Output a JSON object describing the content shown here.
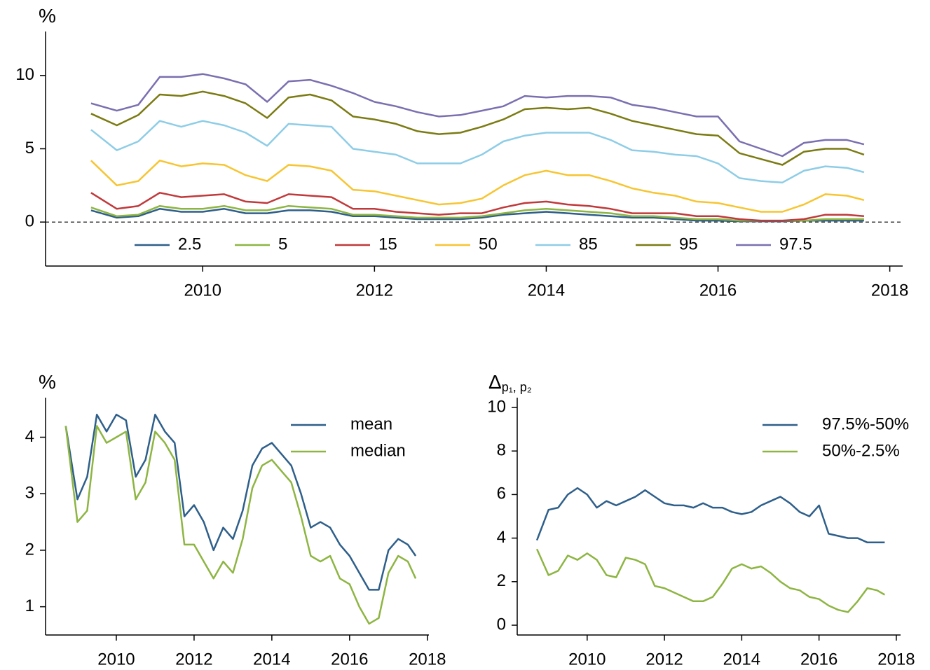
{
  "chart_data": [
    {
      "type": "line",
      "y_label": "%",
      "legend": "lower center",
      "reference_line": 0,
      "xlim": [
        2008.17,
        2018.15
      ],
      "ylim": [
        -3,
        13
      ],
      "xticks": [
        2010,
        2012,
        2014,
        2016,
        2018
      ],
      "yticks": [
        0,
        5,
        10
      ],
      "x": [
        2008.7,
        2009.0,
        2009.25,
        2009.5,
        2009.75,
        2010.0,
        2010.25,
        2010.5,
        2010.75,
        2011.0,
        2011.25,
        2011.5,
        2011.75,
        2012.0,
        2012.25,
        2012.5,
        2012.75,
        2013.0,
        2013.25,
        2013.5,
        2013.75,
        2014.0,
        2014.25,
        2014.5,
        2014.75,
        2015.0,
        2015.25,
        2015.5,
        2015.75,
        2016.0,
        2016.25,
        2016.5,
        2016.75,
        2017.0,
        2017.25,
        2017.5,
        2017.7
      ],
      "series": [
        {
          "name": "2.5",
          "color": "#2e5f8a",
          "values": [
            0.8,
            0.3,
            0.4,
            0.9,
            0.7,
            0.7,
            0.9,
            0.6,
            0.6,
            0.8,
            0.8,
            0.7,
            0.4,
            0.4,
            0.3,
            0.2,
            0.2,
            0.2,
            0.3,
            0.5,
            0.6,
            0.7,
            0.6,
            0.5,
            0.4,
            0.3,
            0.3,
            0.2,
            0.1,
            0.1,
            0.05,
            0.05,
            0.05,
            0.1,
            0.1,
            0.1,
            0.1
          ]
        },
        {
          "name": "5",
          "color": "#8db542",
          "values": [
            1.0,
            0.4,
            0.5,
            1.1,
            0.9,
            0.9,
            1.1,
            0.8,
            0.8,
            1.1,
            1.0,
            0.9,
            0.5,
            0.5,
            0.4,
            0.3,
            0.3,
            0.3,
            0.4,
            0.6,
            0.8,
            0.9,
            0.8,
            0.7,
            0.6,
            0.4,
            0.4,
            0.3,
            0.2,
            0.2,
            0.1,
            0.1,
            0.1,
            0.1,
            0.2,
            0.2,
            0.2
          ]
        },
        {
          "name": "15",
          "color": "#c0393b",
          "values": [
            2.0,
            0.9,
            1.1,
            2.0,
            1.7,
            1.8,
            1.9,
            1.4,
            1.3,
            1.9,
            1.8,
            1.7,
            0.9,
            0.9,
            0.7,
            0.6,
            0.5,
            0.6,
            0.6,
            1.0,
            1.3,
            1.4,
            1.2,
            1.1,
            0.9,
            0.6,
            0.6,
            0.6,
            0.4,
            0.4,
            0.2,
            0.1,
            0.1,
            0.2,
            0.5,
            0.5,
            0.4
          ]
        },
        {
          "name": "50",
          "color": "#f7c531",
          "values": [
            4.2,
            2.5,
            2.8,
            4.2,
            3.8,
            4.0,
            3.9,
            3.2,
            2.8,
            3.9,
            3.8,
            3.5,
            2.2,
            2.1,
            1.8,
            1.5,
            1.2,
            1.3,
            1.6,
            2.5,
            3.2,
            3.5,
            3.2,
            3.2,
            2.8,
            2.3,
            2.0,
            1.8,
            1.4,
            1.3,
            1.0,
            0.7,
            0.7,
            1.2,
            1.9,
            1.8,
            1.5
          ]
        },
        {
          "name": "85",
          "color": "#8ecde6",
          "values": [
            6.3,
            4.9,
            5.5,
            6.9,
            6.5,
            6.9,
            6.6,
            6.1,
            5.2,
            6.7,
            6.6,
            6.5,
            5.0,
            4.8,
            4.6,
            4.0,
            4.0,
            4.0,
            4.6,
            5.5,
            5.9,
            6.1,
            6.1,
            6.1,
            5.6,
            4.9,
            4.8,
            4.6,
            4.5,
            4.0,
            3.0,
            2.8,
            2.7,
            3.5,
            3.8,
            3.7,
            3.4
          ]
        },
        {
          "name": "95",
          "color": "#7b7b13",
          "values": [
            7.4,
            6.6,
            7.3,
            8.7,
            8.6,
            8.9,
            8.6,
            8.1,
            7.1,
            8.5,
            8.7,
            8.3,
            7.2,
            7.0,
            6.7,
            6.2,
            6.0,
            6.1,
            6.5,
            7.0,
            7.7,
            7.8,
            7.7,
            7.8,
            7.4,
            6.9,
            6.6,
            6.3,
            6.0,
            5.9,
            4.7,
            4.3,
            3.9,
            4.8,
            5.0,
            5.0,
            4.6
          ]
        },
        {
          "name": "97.5",
          "color": "#7b6fb0",
          "values": [
            8.1,
            7.6,
            8.0,
            9.9,
            9.9,
            10.1,
            9.8,
            9.4,
            8.2,
            9.6,
            9.7,
            9.3,
            8.8,
            8.2,
            7.9,
            7.5,
            7.2,
            7.3,
            7.6,
            7.9,
            8.6,
            8.5,
            8.6,
            8.6,
            8.5,
            8.0,
            7.8,
            7.5,
            7.2,
            7.2,
            5.5,
            5.0,
            4.5,
            5.4,
            5.6,
            5.6,
            5.3
          ]
        }
      ]
    },
    {
      "type": "line",
      "y_label": "%",
      "legend": "upper right",
      "xlim": [
        2008.18,
        2018.04
      ],
      "ylim": [
        0.5,
        4.7
      ],
      "xticks": [
        2010,
        2012,
        2014,
        2016,
        2018
      ],
      "yticks": [
        1,
        2,
        3,
        4
      ],
      "x": [
        2008.7,
        2009.0,
        2009.25,
        2009.5,
        2009.75,
        2010.0,
        2010.25,
        2010.5,
        2010.75,
        2011.0,
        2011.25,
        2011.5,
        2011.75,
        2012.0,
        2012.25,
        2012.5,
        2012.75,
        2013.0,
        2013.25,
        2013.5,
        2013.75,
        2014.0,
        2014.25,
        2014.5,
        2014.75,
        2015.0,
        2015.25,
        2015.5,
        2015.75,
        2016.0,
        2016.25,
        2016.5,
        2016.75,
        2017.0,
        2017.25,
        2017.5,
        2017.7
      ],
      "series": [
        {
          "name": "mean",
          "color": "#2e5f8a",
          "values": [
            4.2,
            2.9,
            3.3,
            4.4,
            4.1,
            4.4,
            4.3,
            3.3,
            3.6,
            4.4,
            4.1,
            3.9,
            2.6,
            2.8,
            2.5,
            2.0,
            2.4,
            2.2,
            2.7,
            3.5,
            3.8,
            3.9,
            3.7,
            3.5,
            3.0,
            2.4,
            2.5,
            2.4,
            2.1,
            1.9,
            1.6,
            1.3,
            1.3,
            2.0,
            2.2,
            2.1,
            1.9
          ]
        },
        {
          "name": "median",
          "color": "#8db542",
          "values": [
            4.2,
            2.5,
            2.7,
            4.2,
            3.9,
            4.0,
            4.1,
            2.9,
            3.2,
            4.1,
            3.9,
            3.6,
            2.1,
            2.1,
            1.8,
            1.5,
            1.8,
            1.6,
            2.2,
            3.1,
            3.5,
            3.6,
            3.4,
            3.2,
            2.6,
            1.9,
            1.8,
            1.9,
            1.5,
            1.4,
            1.0,
            0.7,
            0.8,
            1.6,
            1.9,
            1.8,
            1.5
          ]
        }
      ]
    },
    {
      "type": "line",
      "y_label": "Δ",
      "y_label_subscript": "p₁, p₂",
      "legend": "upper right",
      "xlim": [
        2008.19,
        2018.11
      ],
      "ylim": [
        -0.45,
        10.45
      ],
      "xticks": [
        2010,
        2012,
        2014,
        2016,
        2018
      ],
      "yticks": [
        0,
        2,
        4,
        6,
        8,
        10
      ],
      "x": [
        2008.7,
        2009.0,
        2009.25,
        2009.5,
        2009.75,
        2010.0,
        2010.25,
        2010.5,
        2010.75,
        2011.0,
        2011.25,
        2011.5,
        2011.75,
        2012.0,
        2012.25,
        2012.5,
        2012.75,
        2013.0,
        2013.25,
        2013.5,
        2013.75,
        2014.0,
        2014.25,
        2014.5,
        2014.75,
        2015.0,
        2015.25,
        2015.5,
        2015.75,
        2016.0,
        2016.25,
        2016.5,
        2016.75,
        2017.0,
        2017.25,
        2017.5,
        2017.7
      ],
      "series": [
        {
          "name": "97.5%-50%",
          "color": "#2e5f8a",
          "values": [
            3.9,
            5.3,
            5.4,
            6.0,
            6.3,
            6.0,
            5.4,
            5.7,
            5.5,
            5.7,
            5.9,
            6.2,
            5.9,
            5.6,
            5.5,
            5.5,
            5.4,
            5.6,
            5.4,
            5.4,
            5.2,
            5.1,
            5.2,
            5.5,
            5.7,
            5.9,
            5.6,
            5.2,
            5.0,
            5.5,
            4.2,
            4.1,
            4.0,
            4.0,
            3.8,
            3.8,
            3.8
          ]
        },
        {
          "name": "50%-2.5%",
          "color": "#8db542",
          "values": [
            3.5,
            2.3,
            2.5,
            3.2,
            3.0,
            3.3,
            3.0,
            2.3,
            2.2,
            3.1,
            3.0,
            2.8,
            1.8,
            1.7,
            1.5,
            1.3,
            1.1,
            1.1,
            1.3,
            1.9,
            2.6,
            2.8,
            2.6,
            2.7,
            2.4,
            2.0,
            1.7,
            1.6,
            1.3,
            1.2,
            0.9,
            0.7,
            0.6,
            1.1,
            1.7,
            1.6,
            1.4
          ]
        }
      ]
    }
  ]
}
